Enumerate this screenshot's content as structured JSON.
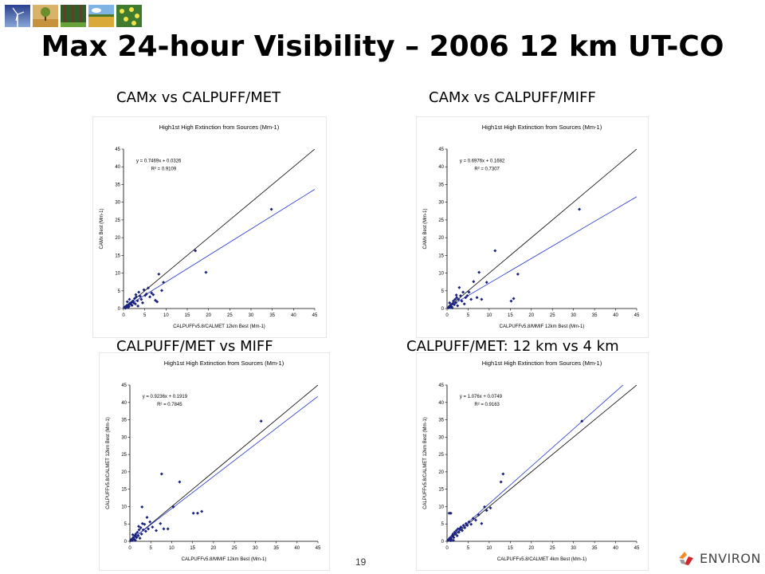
{
  "slide": {
    "title": "Max 24-hour Visibility – 2006 12 km UT-CO",
    "page_number": "19",
    "logo_text": "ENVIRON",
    "thumbnails": [
      "wind-turbine-thumbnail",
      "tree-thumbnail",
      "forest-thumbnail",
      "field-thumbnail",
      "flowers-thumbnail"
    ]
  },
  "subtitles": [
    "CAMx vs CALPUFF/MET",
    "CAMx vs CALPUFF/MIFF",
    "CALPUFF/MET vs MIFF",
    "CALPUFF/MET: 12 km vs 4 km"
  ],
  "colors": {
    "points": "#1a237e",
    "fit_line": "#2233cc",
    "one_to_one": "#000000"
  },
  "chart_data": [
    {
      "type": "scatter",
      "title": "High1st High Extinction from Sources (Mm-1)",
      "xlabel": "CALPUFFv5.8/CALMET 12km Best (Mm-1)",
      "ylabel": "CAMx Best (Mm-1)",
      "xlim": [
        0,
        45
      ],
      "ylim": [
        0,
        45
      ],
      "ticks": [
        0,
        5,
        10,
        15,
        20,
        25,
        30,
        35,
        40,
        45
      ],
      "equation": "y = 0.7469x + 0.0326",
      "r2": "R² = 0.9109",
      "fit": {
        "slope": 0.7469,
        "intercept": 0.0326
      },
      "grid": false,
      "points": [
        [
          0.2,
          0.3
        ],
        [
          0.4,
          0.5
        ],
        [
          0.6,
          0.4
        ],
        [
          0.8,
          0.9
        ],
        [
          1,
          0.7
        ],
        [
          1.2,
          1.1
        ],
        [
          1.3,
          0.6
        ],
        [
          1.5,
          1.5
        ],
        [
          1.7,
          1.2
        ],
        [
          1.9,
          1.8
        ],
        [
          2,
          0.9
        ],
        [
          2.2,
          2.1
        ],
        [
          2.4,
          1.6
        ],
        [
          2.6,
          2.8
        ],
        [
          2.8,
          1.3
        ],
        [
          3,
          3.3
        ],
        [
          3.3,
          2.2
        ],
        [
          3.6,
          4.6
        ],
        [
          3.9,
          3.5
        ],
        [
          4.2,
          2.6
        ],
        [
          4.5,
          1.6
        ],
        [
          4.8,
          5.3
        ],
        [
          5.1,
          3.7
        ],
        [
          5.4,
          4.1
        ],
        [
          5.8,
          5.8
        ],
        [
          6.2,
          3.3
        ],
        [
          6.6,
          4.4
        ],
        [
          7,
          3.9
        ],
        [
          7.5,
          2.3
        ],
        [
          7.9,
          1.9
        ],
        [
          8.3,
          9.7
        ],
        [
          9,
          5.1
        ],
        [
          9.4,
          7.4
        ],
        [
          1.4,
          2.6
        ],
        [
          2.9,
          3.9
        ],
        [
          3.4,
          0.7
        ],
        [
          0.9,
          1.9
        ],
        [
          0.5,
          0.1
        ],
        [
          1.1,
          0.3
        ],
        [
          16.9,
          16.3
        ],
        [
          19.4,
          10.2
        ],
        [
          34.8,
          28
        ]
      ]
    },
    {
      "type": "scatter",
      "title": "High1st High Extinction from Sources (Mm-1)",
      "xlabel": "CALPUFFv5.8/MMIF 12km Best (Mm-1)",
      "ylabel": "CAMx Best (Mm-1)",
      "xlim": [
        0,
        45
      ],
      "ylim": [
        0,
        45
      ],
      "ticks": [
        0,
        5,
        10,
        15,
        20,
        25,
        30,
        35,
        40,
        45
      ],
      "equation": "y = 0.6976x + 0.1682",
      "r2": "R² = 0.7307",
      "fit": {
        "slope": 0.6976,
        "intercept": 0.1682
      },
      "grid": false,
      "points": [
        [
          0.3,
          0.2
        ],
        [
          0.5,
          0.6
        ],
        [
          0.7,
          0.3
        ],
        [
          0.9,
          1
        ],
        [
          1.1,
          0.5
        ],
        [
          1.3,
          1.4
        ],
        [
          1.5,
          2.1
        ],
        [
          1.7,
          1.1
        ],
        [
          1.9,
          2.6
        ],
        [
          2.1,
          1.6
        ],
        [
          2.3,
          3.1
        ],
        [
          2.5,
          0.8
        ],
        [
          2.7,
          2.6
        ],
        [
          2.9,
          5.9
        ],
        [
          3.2,
          3.6
        ],
        [
          3.5,
          2.1
        ],
        [
          3.8,
          4.6
        ],
        [
          4.1,
          1.3
        ],
        [
          4.4,
          3.1
        ],
        [
          4.8,
          3.6
        ],
        [
          5.2,
          4.6
        ],
        [
          5.7,
          2.6
        ],
        [
          6.3,
          7.6
        ],
        [
          7.1,
          3.1
        ],
        [
          7.6,
          10.2
        ],
        [
          8.2,
          2.6
        ],
        [
          9.4,
          7.4
        ],
        [
          0.6,
          1.6
        ],
        [
          1.2,
          0.2
        ],
        [
          2.2,
          3.8
        ],
        [
          11.4,
          16.3
        ],
        [
          15.2,
          2.1
        ],
        [
          15.8,
          2.8
        ],
        [
          16.8,
          9.7
        ],
        [
          31.4,
          28
        ]
      ]
    },
    {
      "type": "scatter",
      "title": "High1st High Extinction from Sources (Mm-1)",
      "xlabel": "CALPUFFv5.8/MMIF 12km Best (Mm-1)",
      "ylabel": "CALPUFFv5.8/CALMET 12km Best (Mm-1)",
      "xlim": [
        0,
        45
      ],
      "ylim": [
        0,
        45
      ],
      "ticks": [
        0,
        5,
        10,
        15,
        20,
        25,
        30,
        35,
        40,
        45
      ],
      "equation": "y = 0.9236x + 0.1919",
      "r2": "R² = 0.7845",
      "fit": {
        "slope": 0.9236,
        "intercept": 0.1919
      },
      "grid": false,
      "points": [
        [
          0.2,
          0.2
        ],
        [
          0.4,
          0.6
        ],
        [
          0.6,
          0.3
        ],
        [
          0.8,
          1.1
        ],
        [
          1,
          0.7
        ],
        [
          1.2,
          1.6
        ],
        [
          1.4,
          2.1
        ],
        [
          1.6,
          1.1
        ],
        [
          1.8,
          2.6
        ],
        [
          2,
          1.6
        ],
        [
          2.2,
          3.3
        ],
        [
          2.4,
          0.9
        ],
        [
          2.6,
          3.9
        ],
        [
          2.8,
          2.1
        ],
        [
          3,
          5.1
        ],
        [
          3.2,
          3.3
        ],
        [
          3.5,
          4.9
        ],
        [
          3.8,
          2.9
        ],
        [
          4.1,
          6.9
        ],
        [
          4.4,
          3.6
        ],
        [
          4.8,
          5.6
        ],
        [
          5.4,
          4.1
        ],
        [
          6.3,
          3.1
        ],
        [
          7.3,
          5.1
        ],
        [
          8.1,
          3.6
        ],
        [
          9.1,
          3.6
        ],
        [
          2.9,
          9.9
        ],
        [
          1.3,
          0.3
        ],
        [
          0.7,
          1.9
        ],
        [
          2.1,
          4.3
        ],
        [
          7.6,
          19.4
        ],
        [
          10.4,
          9.9
        ],
        [
          11.9,
          17.1
        ],
        [
          15.2,
          8.1
        ],
        [
          16.2,
          8.1
        ],
        [
          17.2,
          8.6
        ],
        [
          31.4,
          34.6
        ]
      ]
    },
    {
      "type": "scatter",
      "title": "High1st High Extinction from Sources (Mm-1)",
      "xlabel": "CALPUFFv5.8/CALMET 4km Best (Mm-1)",
      "ylabel": "CALPUFFv5.8/CALMET 12km Best (Mm-1)",
      "xlim": [
        0,
        45
      ],
      "ylim": [
        0,
        45
      ],
      "ticks": [
        0,
        5,
        10,
        15,
        20,
        25,
        30,
        35,
        40,
        45
      ],
      "equation": "y = 1.076x + 0.0749",
      "r2": "R² = 0.9163",
      "fit": {
        "slope": 1.076,
        "intercept": 0.0749
      },
      "grid": false,
      "points": [
        [
          0.2,
          0.3
        ],
        [
          0.4,
          0.5
        ],
        [
          0.6,
          0.9
        ],
        [
          0.8,
          1.1
        ],
        [
          1,
          0.7
        ],
        [
          1.2,
          1.6
        ],
        [
          1.4,
          2.1
        ],
        [
          1.6,
          1.1
        ],
        [
          1.8,
          2.6
        ],
        [
          2,
          2.1
        ],
        [
          2.2,
          3.1
        ],
        [
          2.4,
          1.6
        ],
        [
          2.6,
          3.6
        ],
        [
          2.8,
          2.6
        ],
        [
          3,
          3.6
        ],
        [
          3.3,
          4.1
        ],
        [
          3.6,
          3.1
        ],
        [
          3.9,
          4.6
        ],
        [
          4.2,
          3.9
        ],
        [
          4.5,
          5.1
        ],
        [
          4.8,
          4.6
        ],
        [
          5.2,
          5.6
        ],
        [
          5.7,
          4.9
        ],
        [
          6.2,
          6.6
        ],
        [
          6.8,
          6.1
        ],
        [
          7.5,
          7.6
        ],
        [
          8.2,
          5.1
        ],
        [
          8.9,
          9.9
        ],
        [
          9.4,
          8.9
        ],
        [
          10.3,
          9.6
        ],
        [
          0.5,
          8.1
        ],
        [
          0.9,
          8.1
        ],
        [
          1.5,
          0.3
        ],
        [
          0.9,
          0.2
        ],
        [
          12.8,
          17.1
        ],
        [
          13.3,
          19.4
        ],
        [
          32,
          34.6
        ]
      ]
    }
  ]
}
